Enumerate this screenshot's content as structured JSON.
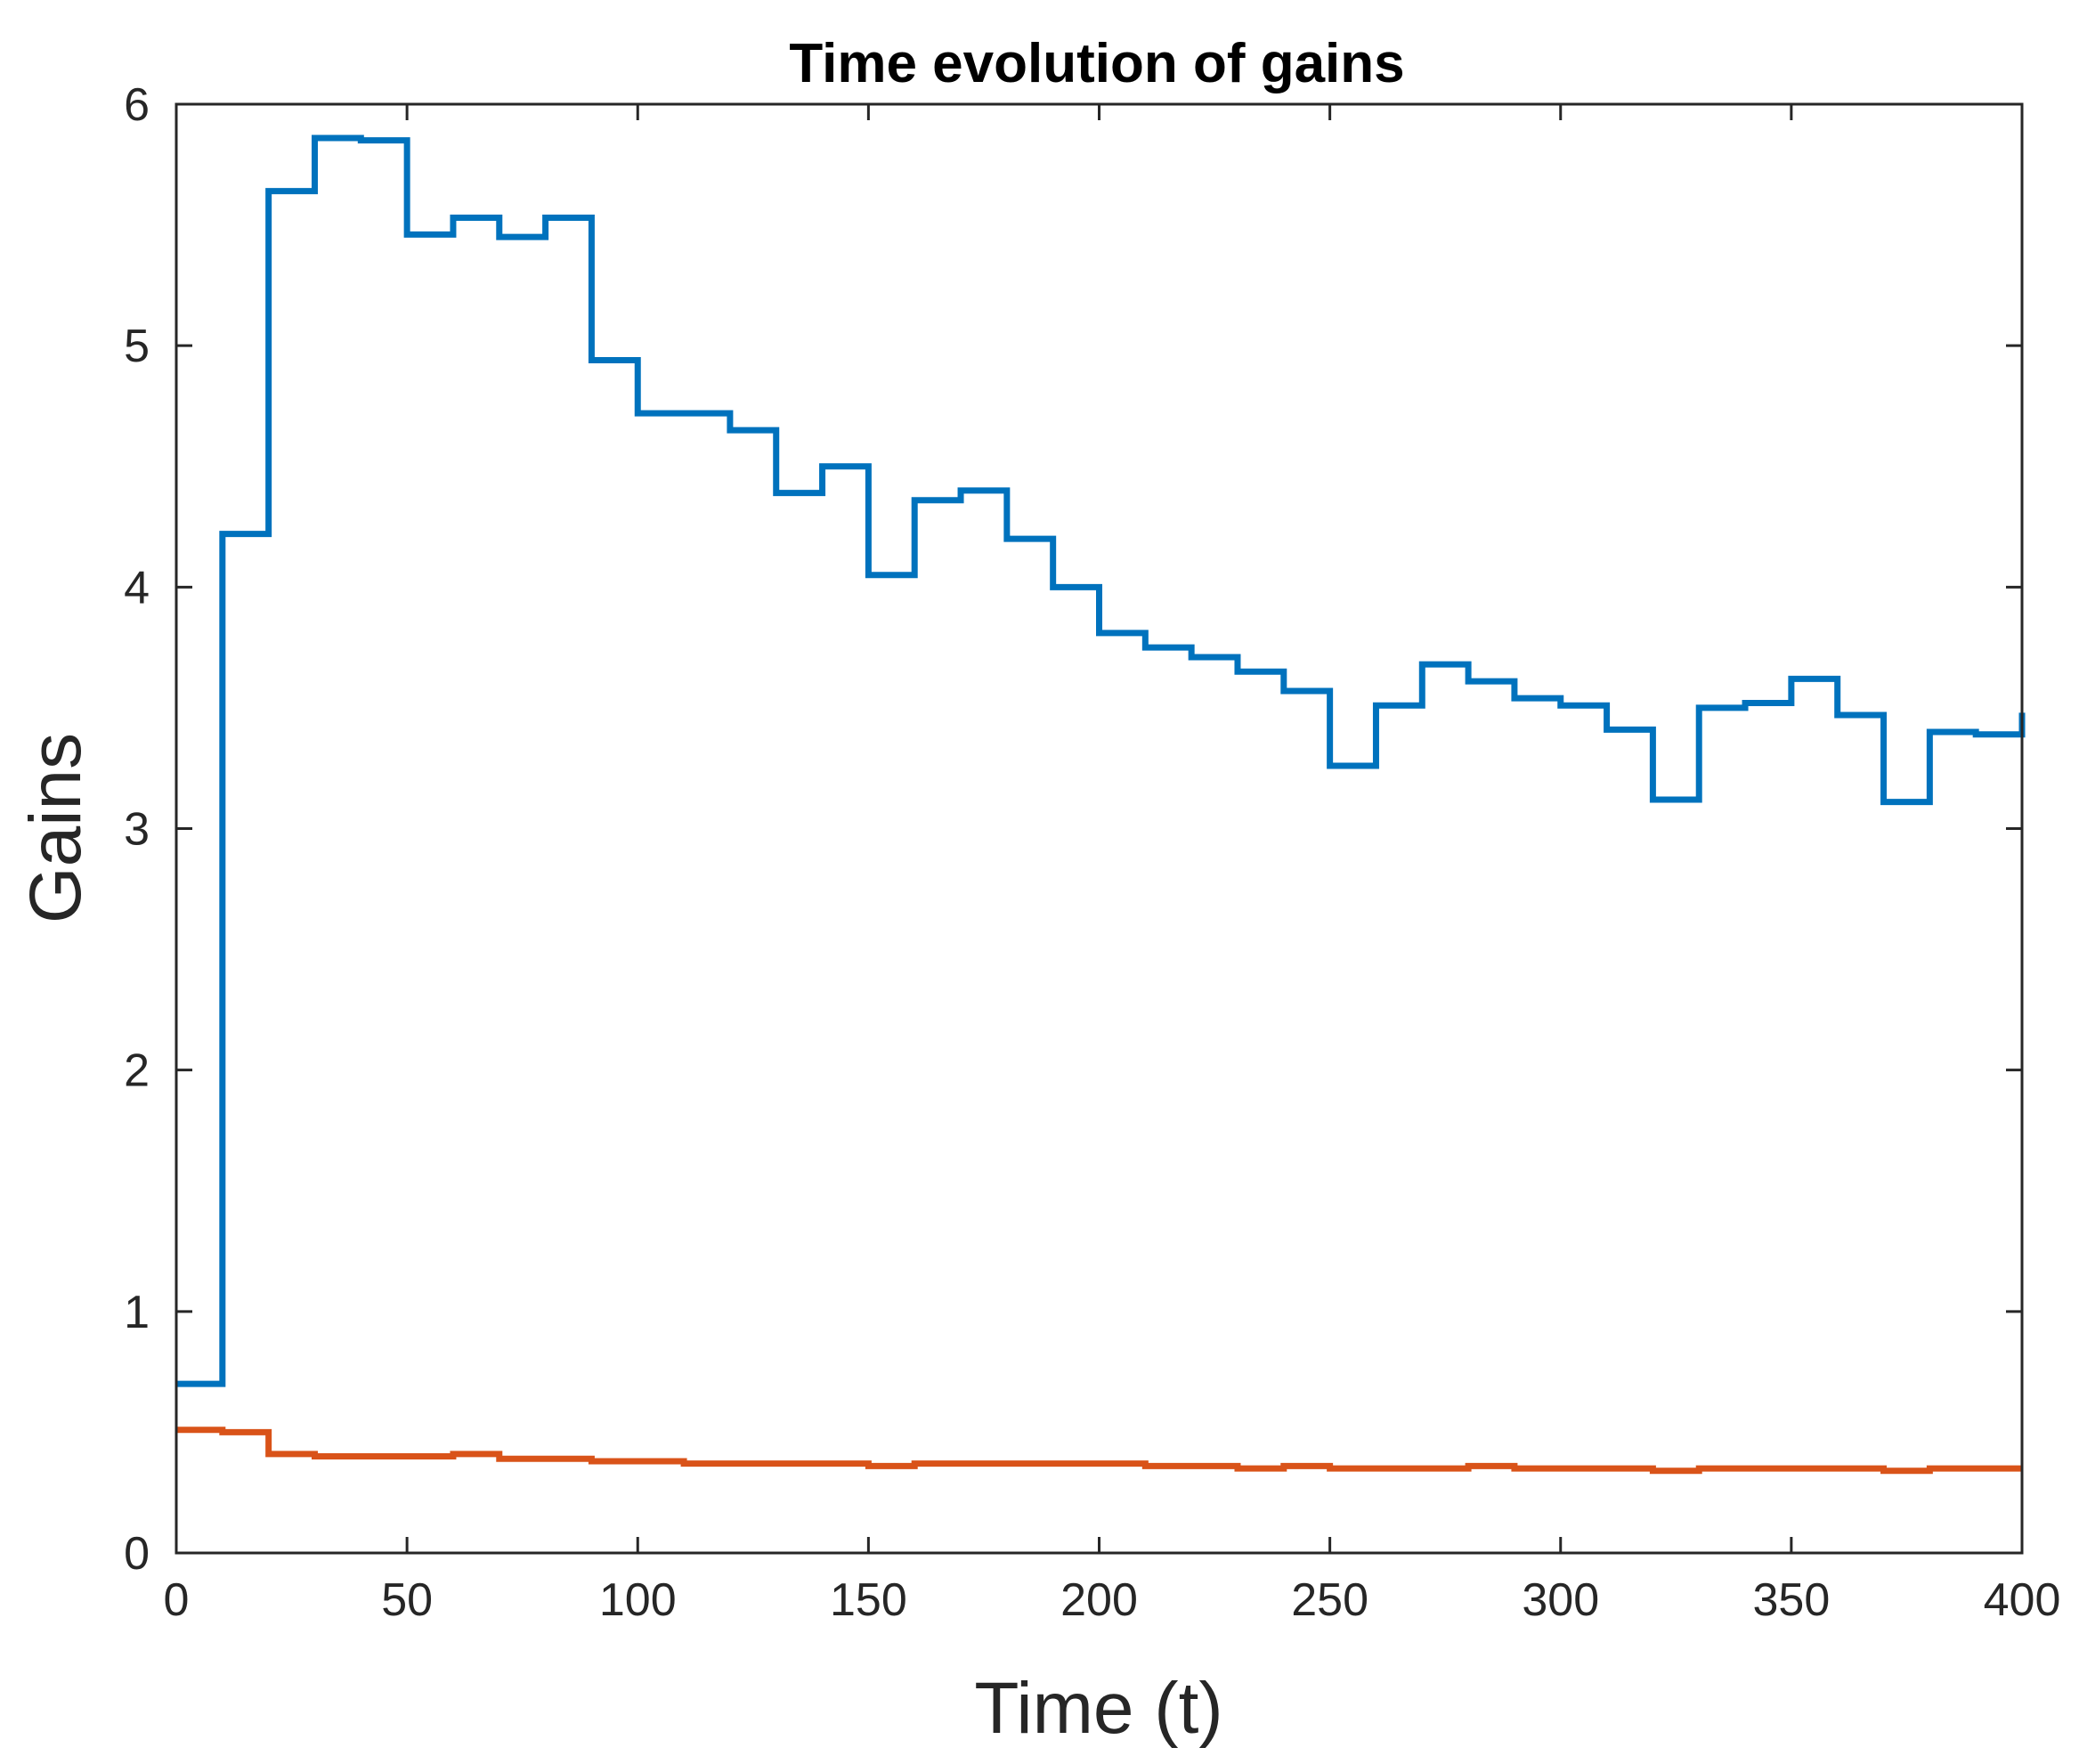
{
  "chart_data": {
    "type": "line",
    "step": true,
    "title": "Time evolution of gains",
    "xlabel": "Time (t)",
    "ylabel": "Gains",
    "xlim": [
      0,
      400
    ],
    "ylim": [
      0,
      6
    ],
    "xticks": [
      "0",
      "50",
      "100",
      "150",
      "200",
      "250",
      "300",
      "350",
      "400"
    ],
    "yticks": [
      "0",
      "1",
      "2",
      "3",
      "4",
      "5",
      "6"
    ],
    "grid": false,
    "legend": "none",
    "series": [
      {
        "color": "#0072BD",
        "x": [
          0,
          10,
          20,
          30,
          40,
          50,
          60,
          70,
          80,
          90,
          100,
          110,
          120,
          130,
          140,
          150,
          160,
          170,
          180,
          190,
          200,
          210,
          220,
          230,
          240,
          250,
          260,
          270,
          280,
          290,
          300,
          310,
          320,
          330,
          340,
          350,
          360,
          370,
          380,
          390,
          400
        ],
        "values": [
          0.7,
          4.22,
          5.64,
          5.86,
          5.85,
          5.46,
          5.53,
          5.45,
          5.53,
          4.94,
          4.72,
          4.72,
          4.65,
          4.39,
          4.5,
          4.05,
          4.36,
          4.4,
          4.2,
          4.0,
          3.81,
          3.75,
          3.71,
          3.65,
          3.57,
          3.26,
          3.51,
          3.68,
          3.61,
          3.54,
          3.51,
          3.41,
          3.12,
          3.5,
          3.52,
          3.62,
          3.47,
          3.11,
          3.4,
          3.39,
          3.48
        ]
      },
      {
        "color": "#D95319",
        "x": [
          0,
          10,
          20,
          30,
          40,
          50,
          60,
          70,
          80,
          90,
          100,
          110,
          120,
          130,
          140,
          150,
          160,
          170,
          180,
          190,
          200,
          210,
          220,
          230,
          240,
          250,
          260,
          270,
          280,
          290,
          300,
          310,
          320,
          330,
          340,
          350,
          360,
          370,
          380,
          390,
          400
        ],
        "values": [
          0.51,
          0.5,
          0.41,
          0.4,
          0.4,
          0.4,
          0.41,
          0.39,
          0.39,
          0.38,
          0.38,
          0.37,
          0.37,
          0.37,
          0.37,
          0.36,
          0.37,
          0.37,
          0.37,
          0.37,
          0.37,
          0.36,
          0.36,
          0.35,
          0.36,
          0.35,
          0.35,
          0.35,
          0.36,
          0.35,
          0.35,
          0.35,
          0.34,
          0.35,
          0.35,
          0.35,
          0.35,
          0.34,
          0.35,
          0.35,
          0.35
        ]
      }
    ]
  }
}
